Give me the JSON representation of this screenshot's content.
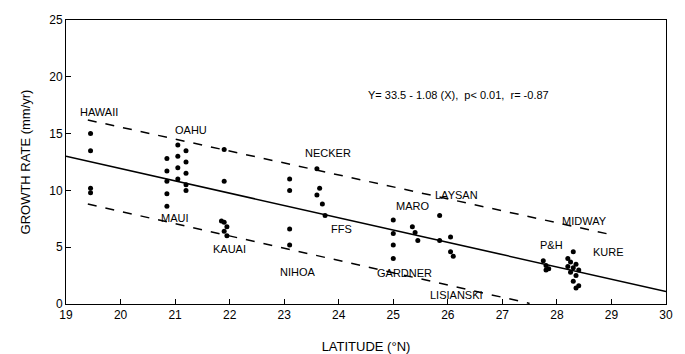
{
  "chart_data": {
    "type": "scatter",
    "x_label": "LATITUDE (°N)",
    "y_label": "GROWTH RATE (mm/yr)",
    "xlim": [
      19,
      30
    ],
    "xticks": [
      19,
      20,
      21,
      22,
      23,
      24,
      25,
      26,
      27,
      28,
      29,
      30
    ],
    "ylim": [
      0,
      25
    ],
    "yticks": [
      0,
      5,
      10,
      15,
      20,
      25
    ],
    "grid": false,
    "series": [
      {
        "type": "scatter",
        "marker": "circle",
        "color": "#000000",
        "x": [
          19.45,
          19.45,
          19.45,
          19.45,
          20.85,
          20.85,
          20.85,
          20.85,
          20.85,
          21.05,
          21.05,
          21.05,
          21.05,
          21.2,
          21.2,
          21.2,
          21.2,
          21.2,
          21.9,
          21.9,
          21.85,
          21.9,
          21.95,
          21.9,
          21.95,
          23.1,
          23.1,
          23.1,
          23.1,
          23.6,
          23.65,
          23.6,
          23.7,
          23.75,
          25.0,
          25.0,
          25.0,
          25.0,
          25.35,
          25.4,
          25.45,
          25.85,
          25.85,
          26.05,
          26.05,
          26.1,
          27.75,
          27.8,
          27.85,
          27.8,
          28.2,
          28.25,
          28.3,
          28.35,
          28.2,
          28.3,
          28.4,
          28.25,
          28.35,
          28.3,
          28.4,
          28.35
        ],
        "values": [
          15.0,
          13.5,
          10.2,
          9.8,
          12.8,
          11.7,
          10.8,
          9.7,
          8.6,
          14.0,
          13.0,
          12.0,
          11.0,
          13.5,
          12.5,
          11.5,
          10.5,
          10.0,
          13.6,
          10.8,
          7.3,
          7.2,
          6.8,
          6.4,
          6.0,
          11.0,
          10.0,
          6.6,
          5.2,
          11.9,
          10.2,
          9.6,
          8.8,
          7.8,
          7.4,
          6.2,
          5.2,
          4.0,
          6.8,
          6.3,
          5.6,
          7.8,
          5.6,
          5.9,
          4.6,
          4.2,
          3.8,
          3.4,
          3.1,
          3.0,
          4.0,
          3.7,
          4.6,
          3.5,
          3.3,
          3.2,
          3.0,
          2.8,
          2.5,
          2.0,
          1.6,
          1.4
        ]
      },
      {
        "type": "line",
        "line_style": "solid",
        "color": "#000000",
        "x": [
          19,
          30
        ],
        "values": [
          13.0,
          1.1
        ]
      },
      {
        "type": "line",
        "line_style": "dashed",
        "color": "#000000",
        "x": [
          19.4,
          29.0
        ],
        "values": [
          16.2,
          6.1
        ]
      },
      {
        "type": "line",
        "line_style": "dashed",
        "color": "#000000",
        "x": [
          19.4,
          27.5
        ],
        "values": [
          8.8,
          0.05
        ]
      }
    ],
    "annotations": [
      {
        "text": "Y= 33.5 - 1.08 (X),  p< 0.01,  r= -0.87",
        "x": 26.2,
        "y": 18.4
      },
      {
        "text": "HAWAII",
        "x": 19.6,
        "y": 16.9
      },
      {
        "text": "OAHU",
        "x": 21.3,
        "y": 15.3
      },
      {
        "text": "MAUI",
        "x": 21.0,
        "y": 7.6
      },
      {
        "text": "KAUAI",
        "x": 22.0,
        "y": 4.8
      },
      {
        "text": "NIHOA",
        "x": 23.25,
        "y": 2.8
      },
      {
        "text": "NECKER",
        "x": 23.8,
        "y": 13.3
      },
      {
        "text": "FFS",
        "x": 24.05,
        "y": 6.6
      },
      {
        "text": "MARO",
        "x": 25.35,
        "y": 8.6
      },
      {
        "text": "LAYSAN",
        "x": 26.15,
        "y": 9.6
      },
      {
        "text": "GARDNER",
        "x": 25.2,
        "y": 2.7
      },
      {
        "text": "LISIANSKI",
        "x": 26.15,
        "y": 0.8
      },
      {
        "text": "P&H",
        "x": 27.9,
        "y": 5.2
      },
      {
        "text": "MIDWAY",
        "x": 28.5,
        "y": 7.3
      },
      {
        "text": "KURE",
        "x": 28.95,
        "y": 4.6
      }
    ]
  }
}
